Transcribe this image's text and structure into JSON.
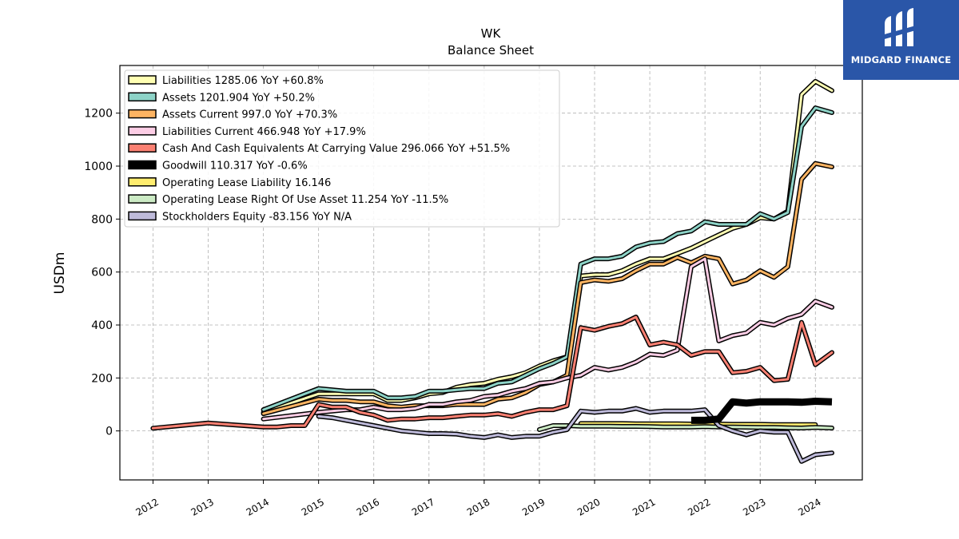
{
  "brand": {
    "name": "MIDGARD FINANCE",
    "bg": "#2a56a8"
  },
  "chart_data": {
    "type": "line",
    "title": "WK",
    "subtitle": "Balance  Sheet",
    "ylabel": "USDm",
    "xlim": [
      2011.4,
      2024.85
    ],
    "ylim": [
      -185,
      1380
    ],
    "xticks": [
      2012,
      2013,
      2014,
      2015,
      2016,
      2017,
      2018,
      2019,
      2020,
      2021,
      2022,
      2023,
      2024
    ],
    "xtick_labels": [
      "2012",
      "2013",
      "2014",
      "2015",
      "2016",
      "2017",
      "2018",
      "2019",
      "2020",
      "2021",
      "2022",
      "2023",
      "2024"
    ],
    "yticks": [
      0,
      200,
      400,
      600,
      800,
      1000,
      1200
    ],
    "ytick_labels": [
      "0",
      "200",
      "400",
      "600",
      "800",
      "1000",
      "1200"
    ],
    "grid": true,
    "legend_position": "top-left",
    "series": [
      {
        "name": "Liabilities  1285.06 YoY +60.8%",
        "color": "#ffffb3",
        "x": [
          2014.0,
          2015.0,
          2016.0,
          2016.25,
          2016.5,
          2016.75,
          2017.0,
          2017.25,
          2017.5,
          2017.75,
          2018.0,
          2018.25,
          2018.5,
          2018.75,
          2019.0,
          2019.25,
          2019.5,
          2019.75,
          2020.0,
          2020.25,
          2020.5,
          2020.75,
          2021.0,
          2021.25,
          2021.5,
          2021.75,
          2022.0,
          2022.25,
          2022.5,
          2022.75,
          2023.0,
          2023.25,
          2023.5,
          2023.75,
          2024.0,
          2024.3
        ],
        "y": [
          70,
          140,
          140,
          115,
          115,
          125,
          140,
          145,
          165,
          175,
          180,
          195,
          205,
          220,
          245,
          265,
          280,
          585,
          590,
          590,
          605,
          630,
          650,
          650,
          670,
          690,
          715,
          740,
          765,
          780,
          805,
          800,
          830,
          1270,
          1320,
          1285
        ]
      },
      {
        "name": "Assets  1201.904 YoY +50.2%",
        "color": "#8dd3c7",
        "x": [
          2014.0,
          2015.0,
          2015.25,
          2015.5,
          2015.75,
          2016.0,
          2016.25,
          2016.5,
          2016.75,
          2017.0,
          2017.25,
          2017.5,
          2017.75,
          2018.0,
          2018.25,
          2018.5,
          2018.75,
          2019.0,
          2019.25,
          2019.5,
          2019.75,
          2020.0,
          2020.25,
          2020.5,
          2020.75,
          2021.0,
          2021.25,
          2021.5,
          2021.75,
          2022.0,
          2022.25,
          2022.5,
          2022.75,
          2023.0,
          2023.25,
          2023.5,
          2023.75,
          2024.0,
          2024.3
        ],
        "y": [
          80,
          160,
          155,
          150,
          150,
          150,
          125,
          125,
          130,
          150,
          150,
          155,
          160,
          160,
          180,
          185,
          210,
          235,
          255,
          280,
          630,
          650,
          650,
          660,
          695,
          710,
          715,
          745,
          755,
          790,
          780,
          780,
          780,
          820,
          800,
          825,
          1150,
          1220,
          1202
        ]
      },
      {
        "name": "Assets Current  997.0 YoY +70.3%",
        "color": "#fdb462",
        "x": [
          2014.0,
          2015.0,
          2015.25,
          2015.5,
          2015.75,
          2016.0,
          2016.25,
          2016.5,
          2016.75,
          2017.0,
          2017.25,
          2017.5,
          2017.75,
          2018.0,
          2018.25,
          2018.5,
          2018.75,
          2019.0,
          2019.25,
          2019.5,
          2019.75,
          2020.0,
          2020.25,
          2020.5,
          2020.75,
          2021.0,
          2021.25,
          2021.5,
          2021.75,
          2022.0,
          2022.25,
          2022.5,
          2022.75,
          2023.0,
          2023.25,
          2023.5,
          2023.75,
          2024.0,
          2024.3
        ],
        "y": [
          65,
          120,
          115,
          115,
          110,
          110,
          95,
          90,
          95,
          95,
          95,
          100,
          100,
          100,
          120,
          125,
          145,
          175,
          185,
          210,
          560,
          570,
          565,
          575,
          605,
          630,
          630,
          655,
          635,
          660,
          650,
          555,
          570,
          605,
          580,
          620,
          950,
          1010,
          997
        ]
      },
      {
        "name": "Liabilities Current  466.948 YoY +17.9%",
        "color": "#fccde5",
        "x": [
          2014.0,
          2015.0,
          2015.25,
          2015.5,
          2015.75,
          2016.0,
          2016.25,
          2016.5,
          2016.75,
          2017.0,
          2017.25,
          2017.5,
          2017.75,
          2018.0,
          2018.25,
          2018.5,
          2018.75,
          2019.0,
          2019.25,
          2019.5,
          2019.75,
          2020.0,
          2020.25,
          2020.5,
          2020.75,
          2021.0,
          2021.25,
          2021.5,
          2021.75,
          2022.0,
          2022.25,
          2022.5,
          2022.75,
          2023.0,
          2023.25,
          2023.5,
          2023.75,
          2024.0,
          2024.3
        ],
        "y": [
          45,
          70,
          75,
          80,
          80,
          90,
          80,
          80,
          85,
          100,
          100,
          110,
          115,
          130,
          135,
          150,
          160,
          180,
          185,
          200,
          210,
          240,
          230,
          240,
          260,
          290,
          285,
          305,
          620,
          650,
          340,
          360,
          370,
          410,
          400,
          425,
          440,
          490,
          467
        ]
      },
      {
        "name": "Cash And Cash Equivalents At Carrying Value  296.066 YoY +51.5%",
        "color": "#fb8072",
        "x": [
          2012.0,
          2013.0,
          2014.0,
          2014.25,
          2014.5,
          2014.75,
          2015.0,
          2015.25,
          2015.5,
          2015.75,
          2016.0,
          2016.25,
          2016.5,
          2016.75,
          2017.0,
          2017.25,
          2017.5,
          2017.75,
          2018.0,
          2018.25,
          2018.5,
          2018.75,
          2019.0,
          2019.25,
          2019.5,
          2019.75,
          2020.0,
          2020.25,
          2020.5,
          2020.75,
          2021.0,
          2021.25,
          2021.5,
          2021.75,
          2022.0,
          2022.25,
          2022.5,
          2022.75,
          2023.0,
          2023.25,
          2023.5,
          2023.75,
          2024.0,
          2024.3
        ],
        "y": [
          10,
          30,
          15,
          15,
          20,
          20,
          100,
          90,
          90,
          70,
          60,
          40,
          45,
          45,
          50,
          50,
          55,
          60,
          60,
          65,
          55,
          70,
          80,
          80,
          95,
          390,
          380,
          395,
          405,
          430,
          325,
          335,
          325,
          285,
          300,
          300,
          220,
          225,
          240,
          190,
          195,
          410,
          250,
          296
        ]
      },
      {
        "name": "Goodwill  110.317 YoY -0.6%",
        "color": "#000000",
        "x": [
          2021.75,
          2022.0,
          2022.25,
          2022.5,
          2022.75,
          2023.0,
          2023.25,
          2023.5,
          2023.75,
          2024.0,
          2024.3
        ],
        "y": [
          40,
          40,
          45,
          110,
          105,
          110,
          110,
          110,
          108,
          112,
          110
        ]
      },
      {
        "name": "Operating Lease Liability  16.146",
        "color": "#ffed6f",
        "x": [
          2019.75,
          2020.0,
          2020.25,
          2020.5,
          2020.75,
          2021.0,
          2021.25,
          2021.5,
          2021.75,
          2022.0,
          2022.25,
          2022.5,
          2022.75,
          2023.0,
          2023.25,
          2023.5,
          2023.75,
          2024.0
        ],
        "y": [
          28,
          28,
          28,
          28,
          27,
          27,
          27,
          27,
          26,
          26,
          26,
          25,
          25,
          25,
          24,
          24,
          24,
          24
        ]
      },
      {
        "name": "Operating Lease Right Of Use Asset  11.254 YoY -11.5%",
        "color": "#ccebc5",
        "x": [
          2019.0,
          2019.25,
          2019.5,
          2019.75,
          2020.0,
          2020.25,
          2020.5,
          2020.75,
          2021.0,
          2021.25,
          2021.5,
          2021.75,
          2022.0,
          2022.25,
          2022.5,
          2022.75,
          2023.0,
          2023.25,
          2023.5,
          2023.75,
          2024.0,
          2024.3
        ],
        "y": [
          5,
          20,
          20,
          18,
          18,
          18,
          17,
          17,
          16,
          15,
          15,
          15,
          16,
          15,
          15,
          14,
          13,
          13,
          12,
          11,
          13,
          11
        ]
      },
      {
        "name": "Stockholders Equity  -83.156 YoY N/A",
        "color": "#bebada",
        "x": [
          2015.0,
          2015.25,
          2015.5,
          2015.75,
          2016.0,
          2016.25,
          2016.5,
          2016.75,
          2017.0,
          2017.25,
          2017.5,
          2017.75,
          2018.0,
          2018.25,
          2018.5,
          2018.75,
          2019.0,
          2019.25,
          2019.5,
          2019.75,
          2020.0,
          2020.25,
          2020.5,
          2020.75,
          2021.0,
          2021.25,
          2021.5,
          2021.75,
          2022.0,
          2022.25,
          2022.5,
          2022.75,
          2023.0,
          2023.25,
          2023.5,
          2023.75,
          2024.0,
          2024.3
        ],
        "y": [
          55,
          50,
          40,
          30,
          20,
          10,
          0,
          -5,
          -10,
          -10,
          -12,
          -20,
          -25,
          -15,
          -25,
          -20,
          -20,
          -5,
          5,
          75,
          70,
          75,
          75,
          85,
          70,
          75,
          75,
          75,
          80,
          20,
          0,
          -15,
          0,
          -5,
          -5,
          -115,
          -90,
          -83
        ]
      }
    ]
  }
}
